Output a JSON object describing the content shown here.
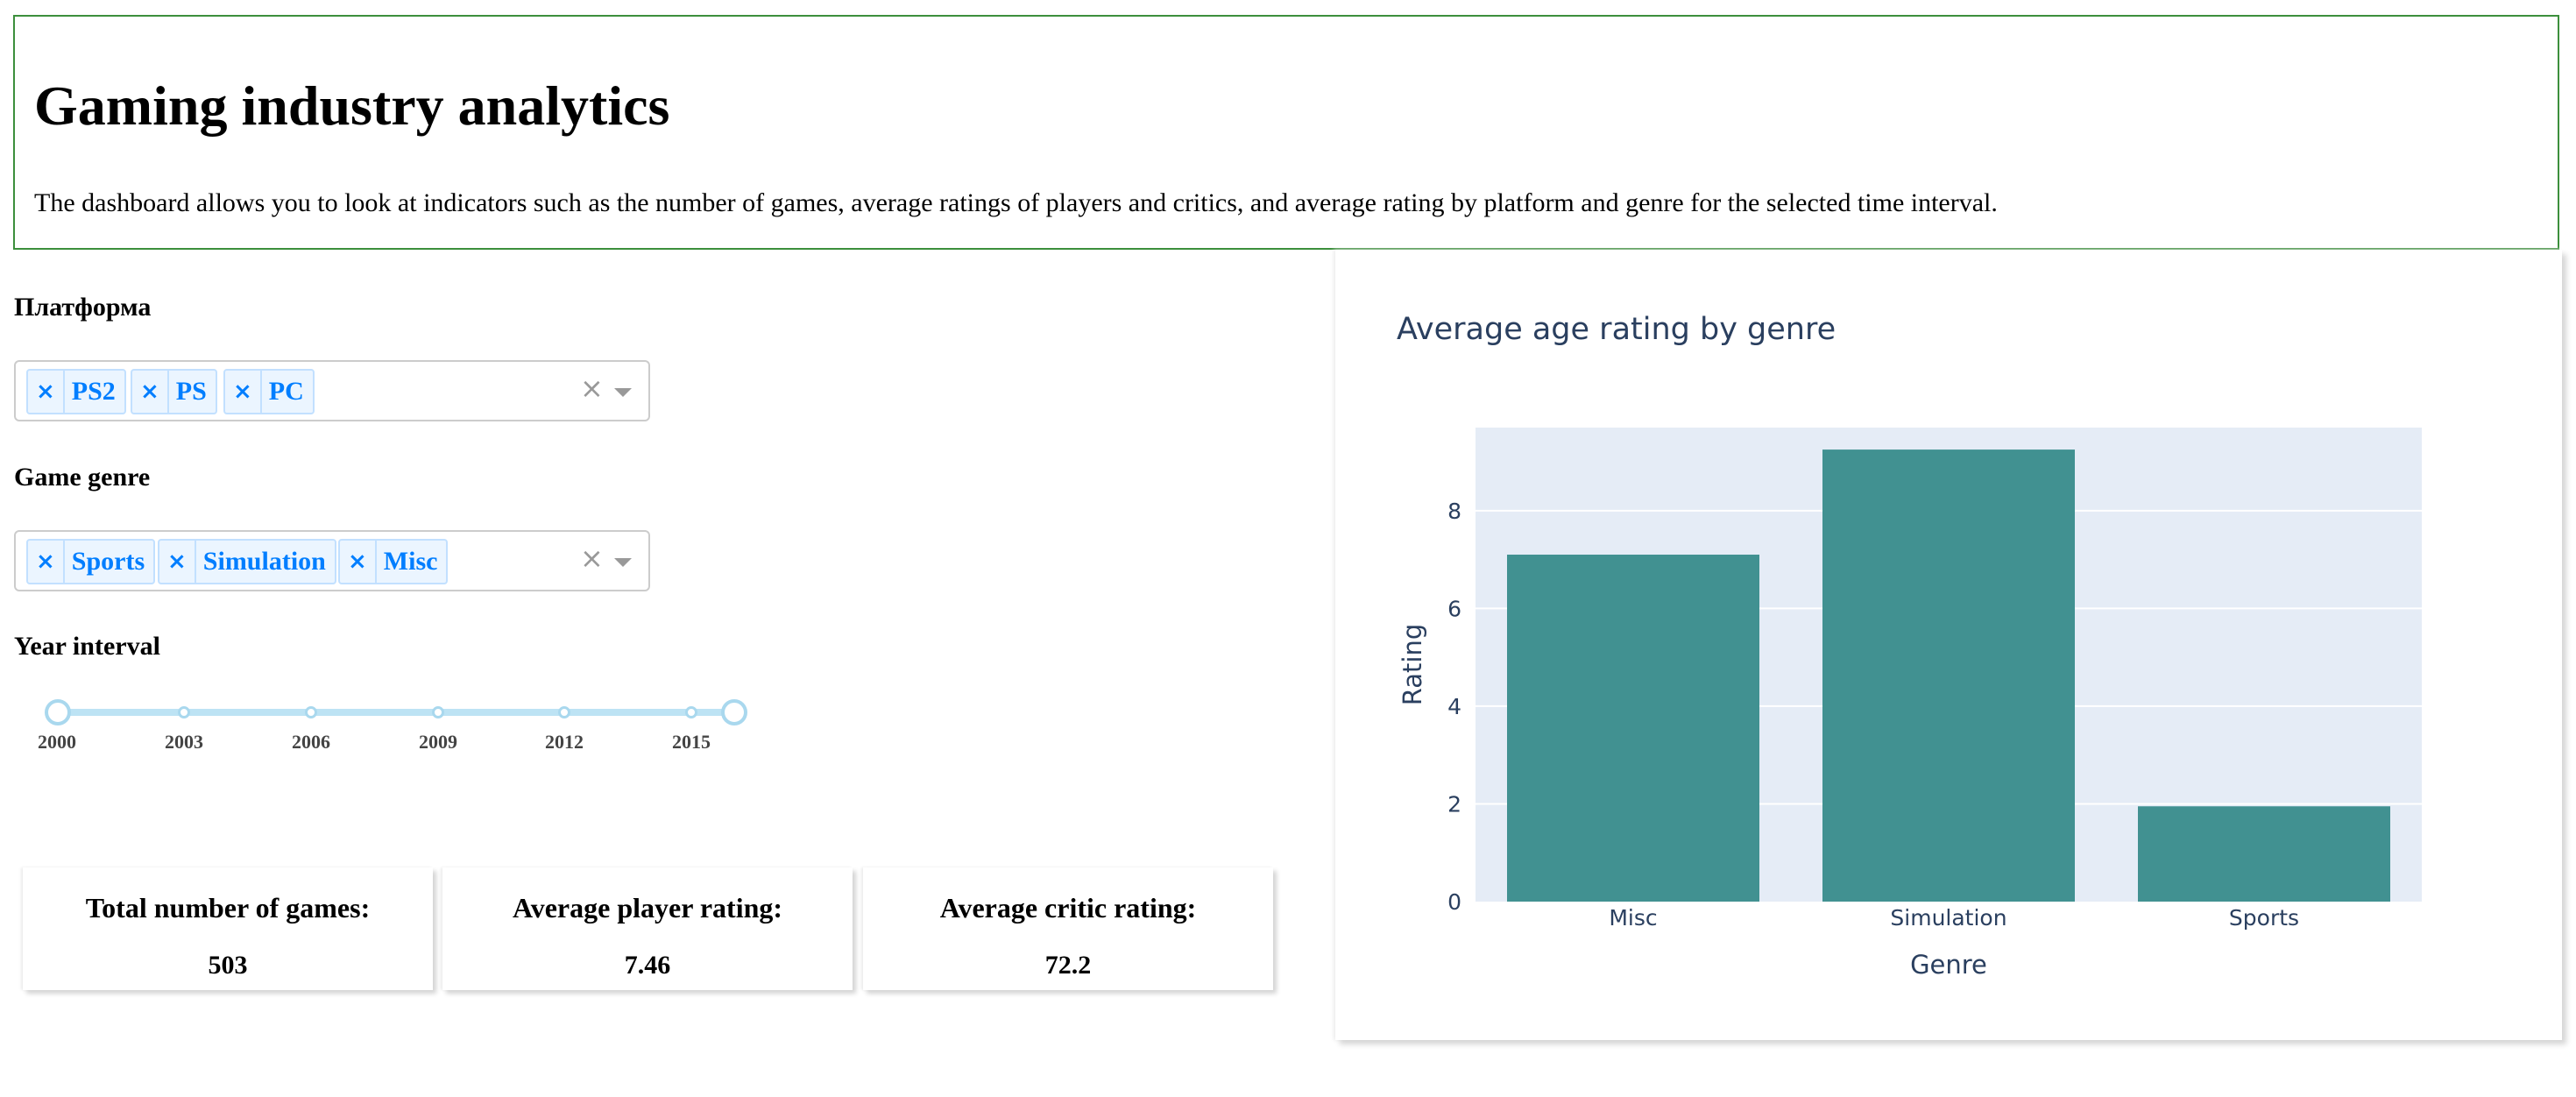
{
  "header": {
    "title": "Gaming industry analytics",
    "description": "The dashboard allows you to look at indicators such as the number of games, average ratings of players and critics, and average rating by platform and genre for the selected time interval."
  },
  "platform_filter": {
    "label": "Платформа",
    "selected": [
      "PS2",
      "PS",
      "PC"
    ],
    "remove_glyph": "×",
    "clear_glyph": "×"
  },
  "genre_filter": {
    "label": "Game genre",
    "selected": [
      "Sports",
      "Simulation",
      "Misc"
    ],
    "remove_glyph": "×",
    "clear_glyph": "×"
  },
  "year_slider": {
    "label": "Year interval",
    "marks": [
      "2000",
      "2003",
      "2006",
      "2009",
      "2012",
      "2015"
    ],
    "min": 2000,
    "max": 2016,
    "range": [
      2000,
      2016
    ]
  },
  "kpis": [
    {
      "title": "Total number of games:",
      "value": "503"
    },
    {
      "title": "Average player rating:",
      "value": "7.46"
    },
    {
      "title": "Average critic rating:",
      "value": "72.2"
    }
  ],
  "chart_data": {
    "type": "bar",
    "title": "Average age rating by genre",
    "xlabel": "Genre",
    "ylabel": "Rating",
    "categories": [
      "Misc",
      "Simulation",
      "Sports"
    ],
    "values": [
      7.1,
      9.25,
      1.95
    ],
    "ylim": [
      0,
      9.7
    ],
    "yticks": [
      0,
      2,
      4,
      6,
      8
    ],
    "grid": true,
    "bar_color": "#419191",
    "plot_bg": "#e5ecf6",
    "text_color": "#2a3f5f"
  },
  "colors": {
    "header_border": "#3c8f3c",
    "tag_text": "#007eff",
    "tag_bg": "#ebf5ff",
    "slider": "#bde3f4"
  },
  "icons": {
    "remove": "close-icon",
    "clear": "clear-icon",
    "dropdown": "chevron-down-icon"
  }
}
